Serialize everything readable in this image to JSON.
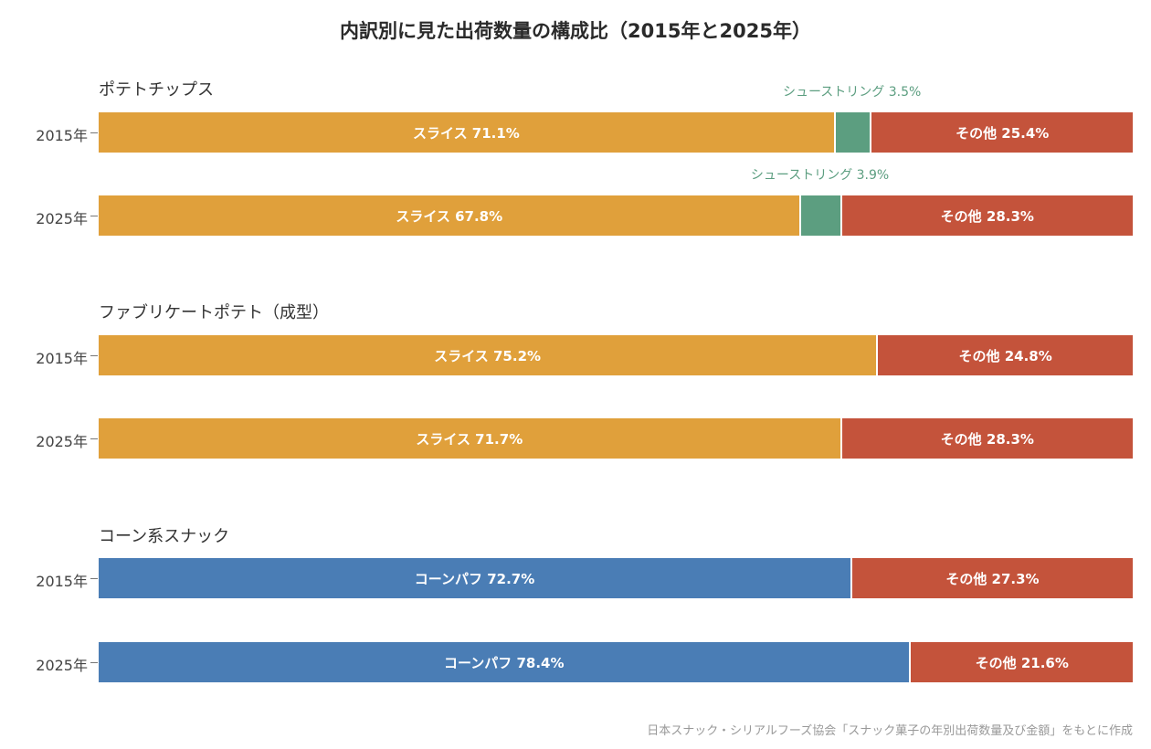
{
  "title": "内訳別に見た出荷数量の構成比（2015年と2025年）",
  "source": "日本スナック・シリアルフーズ協会「スナック菓子の年別出荷数量及び金額」をもとに作成",
  "colors": {
    "スライス": "#e0a03b",
    "シューストリング": "#5c9e80",
    "その他": "#c4533b",
    "コーンパフ": "#4a7db5"
  },
  "chart_data": {
    "type": "bar",
    "orientation": "horizontal",
    "stacked": true,
    "normalized": true,
    "xlim": [
      0,
      100
    ],
    "unit": "%",
    "title": "内訳別に見た出荷数量の構成比（2015年と2025年）",
    "groups": [
      {
        "name": "ポテトチップス",
        "rows": [
          {
            "label": "2015年",
            "segments": [
              {
                "name": "スライス",
                "value": 71.1
              },
              {
                "name": "シューストリング",
                "value": 3.5,
                "label_outside": true
              },
              {
                "name": "その他",
                "value": 25.4
              }
            ]
          },
          {
            "label": "2025年",
            "segments": [
              {
                "name": "スライス",
                "value": 67.8
              },
              {
                "name": "シューストリング",
                "value": 3.9,
                "label_outside": true
              },
              {
                "name": "その他",
                "value": 28.3
              }
            ]
          }
        ]
      },
      {
        "name": "ファブリケートポテト（成型）",
        "rows": [
          {
            "label": "2015年",
            "segments": [
              {
                "name": "スライス",
                "value": 75.2
              },
              {
                "name": "その他",
                "value": 24.8
              }
            ]
          },
          {
            "label": "2025年",
            "segments": [
              {
                "name": "スライス",
                "value": 71.7
              },
              {
                "name": "その他",
                "value": 28.3
              }
            ]
          }
        ]
      },
      {
        "name": "コーン系スナック",
        "rows": [
          {
            "label": "2015年",
            "segments": [
              {
                "name": "コーンパフ",
                "value": 72.7
              },
              {
                "name": "その他",
                "value": 27.3
              }
            ]
          },
          {
            "label": "2025年",
            "segments": [
              {
                "name": "コーンパフ",
                "value": 78.4
              },
              {
                "name": "その他",
                "value": 21.6
              }
            ]
          }
        ]
      }
    ]
  }
}
